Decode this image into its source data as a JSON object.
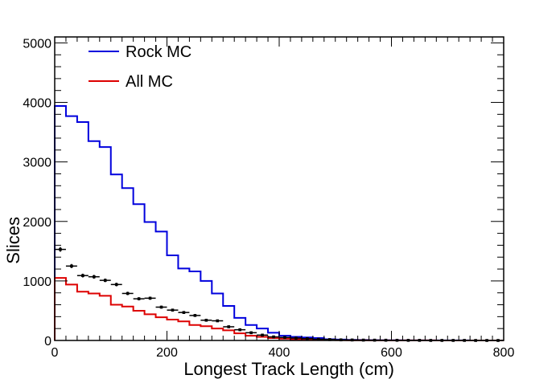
{
  "chart_data": {
    "type": "histogram",
    "xlabel": "Longest Track Length (cm)",
    "ylabel": "Slices",
    "xlim": [
      0,
      800
    ],
    "ylim": [
      0,
      5100
    ],
    "x_ticks": [
      0,
      200,
      400,
      600,
      800
    ],
    "y_ticks": [
      0,
      1000,
      2000,
      3000,
      4000,
      5000
    ],
    "x_tick_labels": [
      "0",
      "200",
      "400",
      "600",
      "800"
    ],
    "y_tick_labels": [
      "0",
      "1000",
      "2000",
      "3000",
      "4000",
      "5000"
    ],
    "bin_edges": [
      0,
      20,
      40,
      60,
      80,
      100,
      120,
      140,
      160,
      180,
      200,
      220,
      240,
      260,
      280,
      300,
      320,
      340,
      360,
      380,
      400,
      420,
      440,
      460,
      480,
      500,
      520,
      540,
      560,
      580,
      600,
      620,
      640,
      660,
      680,
      700,
      720,
      740,
      760,
      780,
      800
    ],
    "legend_position": "top-left",
    "series": [
      {
        "name": "Rock MC",
        "style": "step",
        "color": "#0000dd",
        "values": [
          3940,
          3770,
          3670,
          3350,
          3250,
          2790,
          2560,
          2290,
          1990,
          1830,
          1430,
          1210,
          1160,
          1000,
          790,
          580,
          380,
          260,
          200,
          130,
          80,
          60,
          50,
          40,
          20,
          15,
          10,
          8,
          5,
          4,
          3,
          2,
          2,
          1,
          1,
          1,
          1,
          0,
          0,
          0
        ]
      },
      {
        "name": "All MC",
        "style": "step",
        "color": "#dd0000",
        "values": [
          1050,
          940,
          820,
          790,
          750,
          600,
          570,
          500,
          440,
          390,
          350,
          320,
          260,
          240,
          200,
          170,
          120,
          80,
          60,
          40,
          30,
          20,
          15,
          10,
          8,
          5,
          4,
          3,
          2,
          2,
          1,
          1,
          1,
          1,
          0,
          0,
          0,
          0,
          0,
          0
        ]
      },
      {
        "name": "",
        "style": "points",
        "color": "#000000",
        "values": [
          1530,
          1250,
          1090,
          1070,
          1010,
          940,
          790,
          700,
          710,
          560,
          510,
          470,
          420,
          340,
          330,
          230,
          180,
          130,
          90,
          60,
          50,
          40,
          30,
          20,
          15,
          10,
          8,
          6,
          5,
          4,
          3,
          2,
          2,
          1,
          1,
          1,
          1,
          0,
          0,
          0
        ],
        "errors": [
          40,
          35,
          32,
          32,
          30,
          30,
          28,
          26,
          26,
          24,
          22,
          22,
          20,
          18,
          18,
          15,
          13,
          11,
          9,
          8,
          7,
          6,
          5,
          4,
          4,
          3,
          3,
          2,
          2,
          2,
          2,
          1,
          1,
          1,
          1,
          1,
          1,
          0,
          0,
          0
        ]
      }
    ]
  }
}
